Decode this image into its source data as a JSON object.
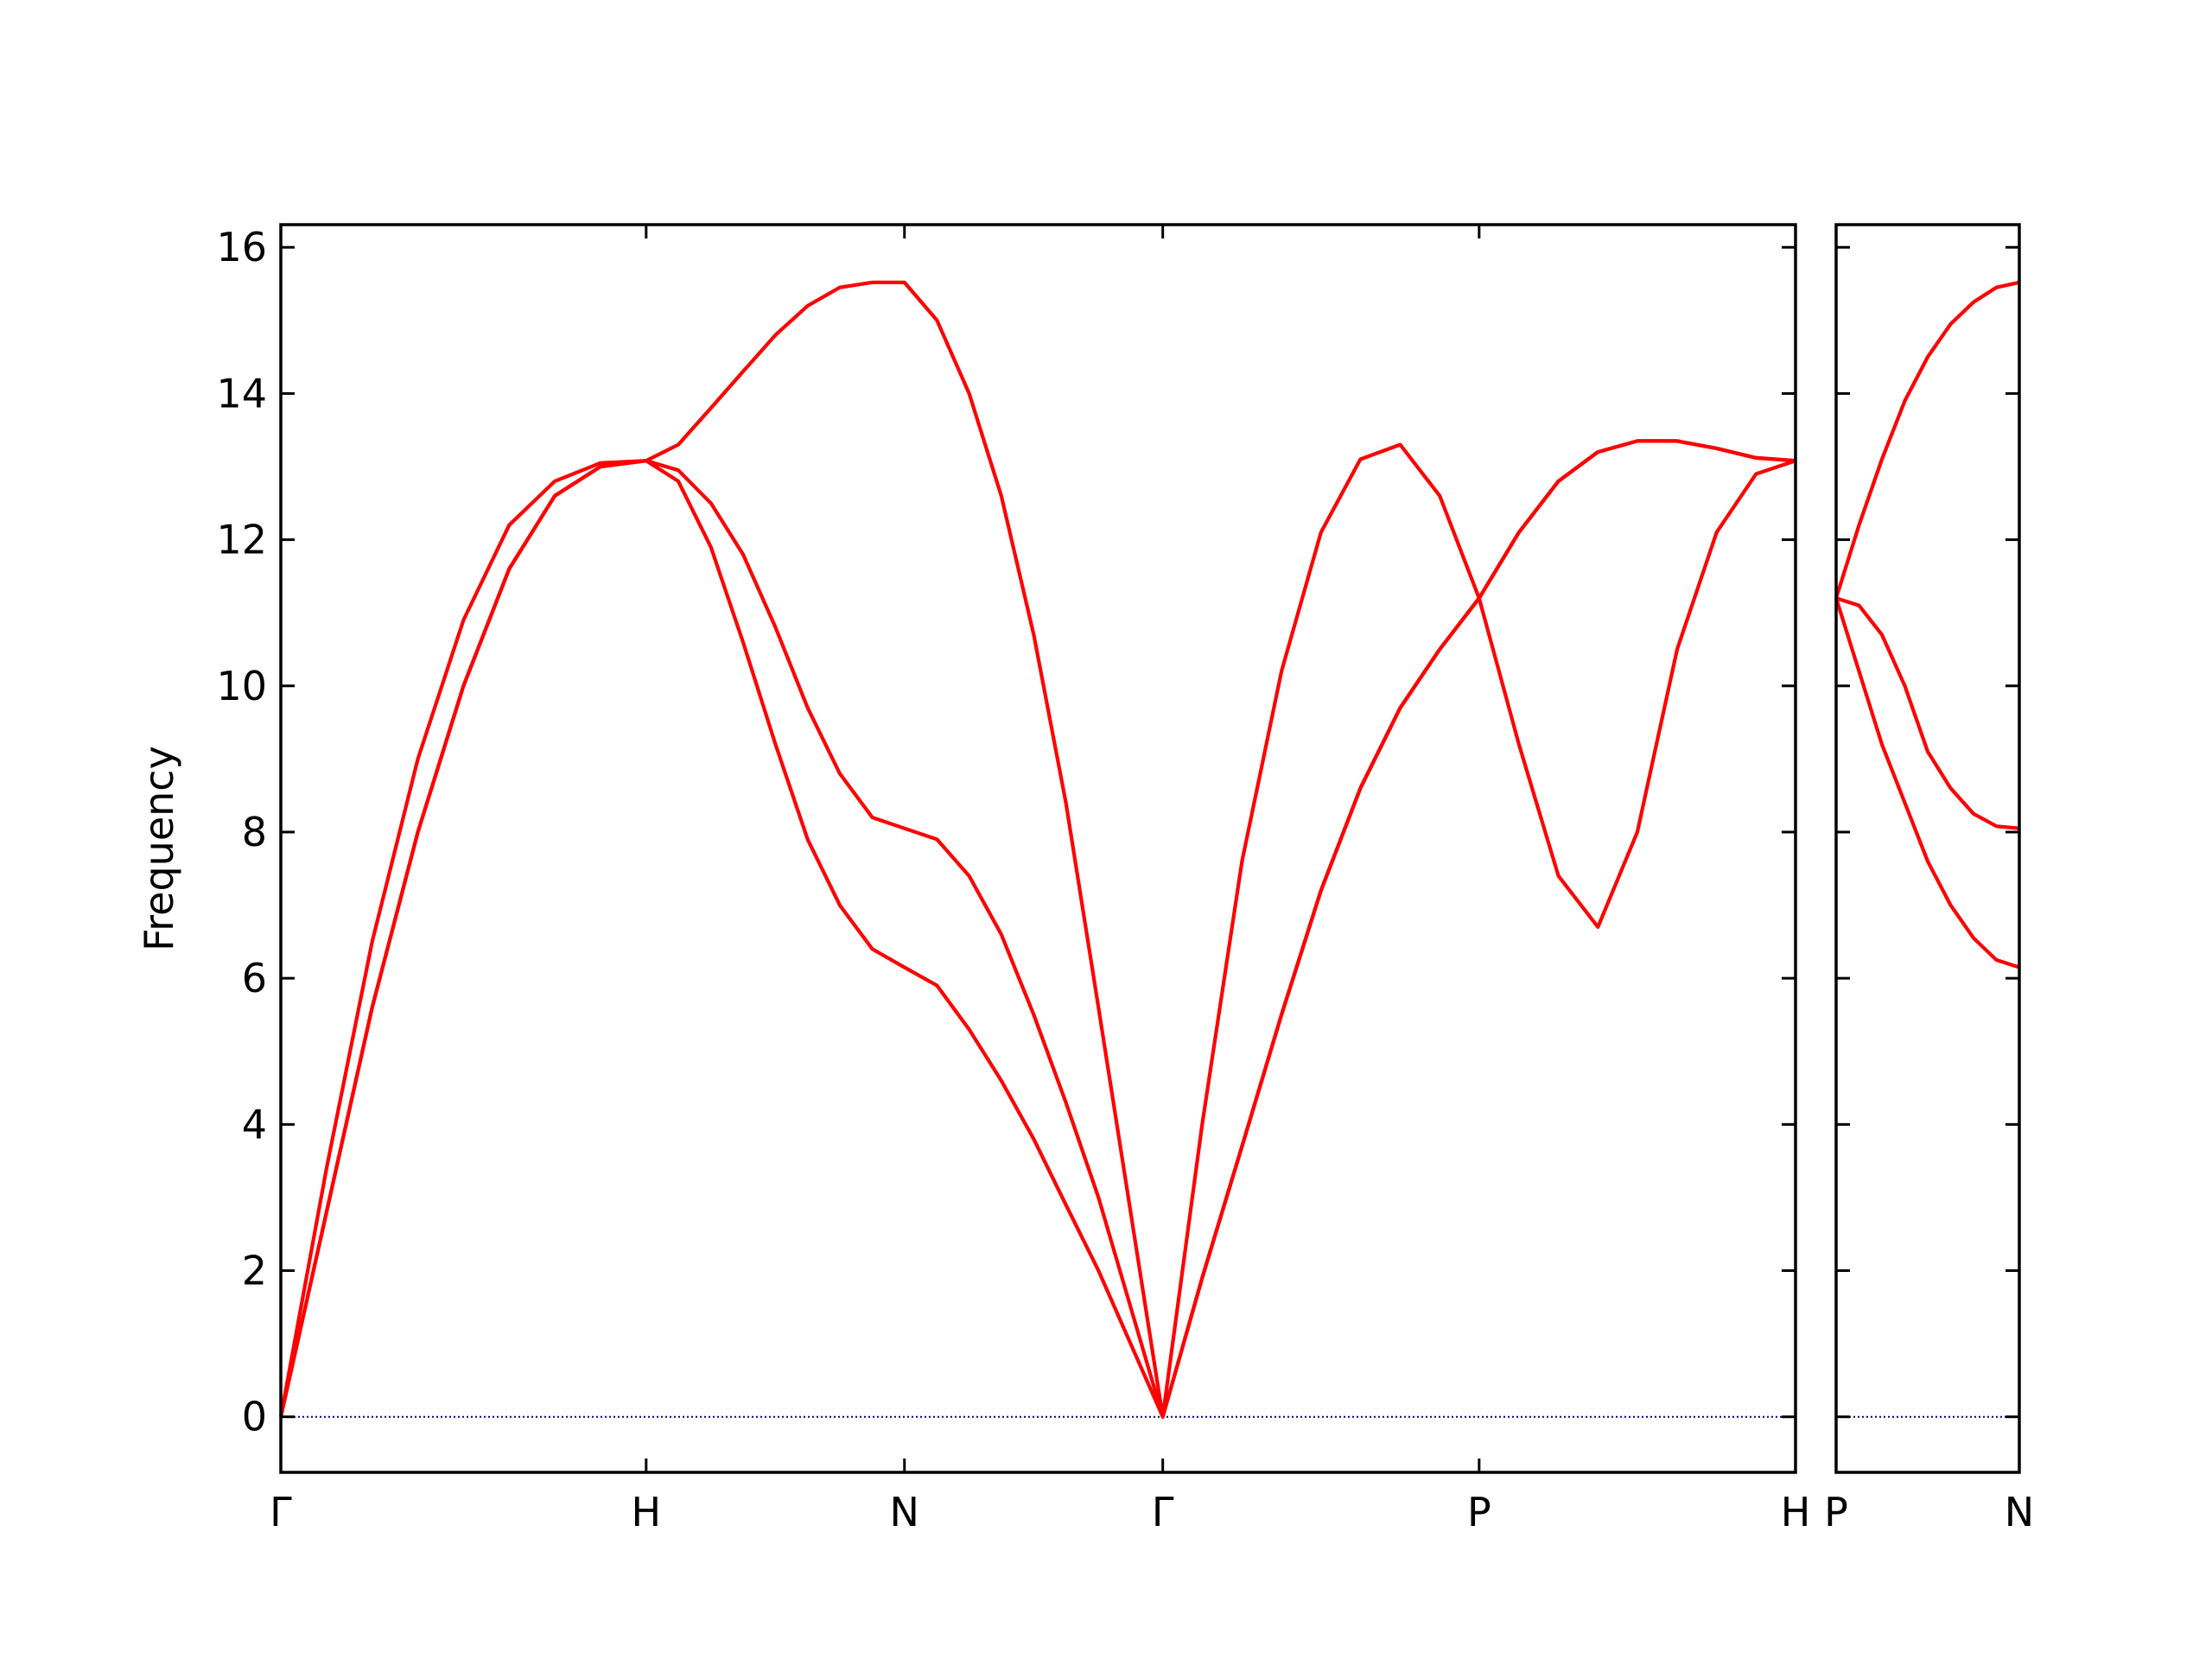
{
  "chart_data": [
    {
      "type": "line",
      "ylabel": "Frequency",
      "x": [
        0,
        0.125,
        0.25,
        0.375,
        0.5,
        0.625,
        0.75,
        0.875,
        1,
        1.088,
        1.177,
        1.265,
        1.354,
        1.442,
        1.53,
        1.619,
        1.707,
        1.796,
        1.884,
        1.972,
        2.061,
        2.149,
        2.238,
        2.326,
        2.414,
        2.522,
        2.631,
        2.739,
        2.847,
        2.955,
        3.064,
        3.172,
        3.28,
        3.389,
        3.497,
        3.605,
        3.713,
        3.822,
        3.93,
        4.038,
        4.146
      ],
      "series": [
        {
          "color": "#ff0000",
          "values": [
            0,
            2.8,
            5.6,
            8.0,
            10.0,
            11.6,
            12.6,
            13.0,
            13.08,
            12.8,
            11.9,
            10.6,
            9.2,
            7.9,
            7.0,
            6.4,
            6.15,
            5.9,
            5.3,
            4.6,
            3.8,
            2.9,
            2.0,
            1.0,
            0,
            1.9,
            3.7,
            5.5,
            7.2,
            8.6,
            9.7,
            10.5,
            11.2,
            9.2,
            7.4,
            6.7,
            8.0,
            10.5,
            12.1,
            12.9,
            13.08
          ]
        },
        {
          "color": "#ff0000",
          "values": [
            0,
            2.8,
            5.6,
            8.0,
            10.0,
            11.6,
            12.6,
            13.0,
            13.08,
            12.95,
            12.5,
            11.8,
            10.8,
            9.7,
            8.8,
            8.2,
            8.05,
            7.9,
            7.4,
            6.6,
            5.5,
            4.3,
            3.0,
            1.5,
            0,
            1.9,
            3.7,
            5.5,
            7.2,
            8.6,
            9.7,
            10.5,
            11.2,
            12.1,
            12.8,
            13.2,
            13.35,
            13.35,
            13.25,
            13.12,
            13.08
          ]
        },
        {
          "color": "#ff0000",
          "values": [
            0,
            3.4,
            6.5,
            9.0,
            10.9,
            12.2,
            12.8,
            13.05,
            13.08,
            13.3,
            13.8,
            14.3,
            14.8,
            15.2,
            15.45,
            15.52,
            15.52,
            15.0,
            14.0,
            12.6,
            10.7,
            8.4,
            5.6,
            2.8,
            0,
            4.0,
            7.6,
            10.2,
            12.1,
            13.1,
            13.3,
            12.6,
            11.2,
            12.1,
            12.8,
            13.2,
            13.35,
            13.35,
            13.25,
            13.12,
            13.08
          ]
        }
      ],
      "xlim": [
        0,
        4.146
      ],
      "xticks": [
        {
          "value": 0,
          "label": "Γ"
        },
        {
          "value": 1,
          "label": "H"
        },
        {
          "value": 1.707,
          "label": "N"
        },
        {
          "value": 2.414,
          "label": "Γ"
        },
        {
          "value": 3.28,
          "label": "P"
        },
        {
          "value": 4.146,
          "label": "H"
        }
      ],
      "ylim": [
        -0.76,
        16.31
      ],
      "yticks": [
        0,
        2,
        4,
        6,
        8,
        10,
        12,
        14,
        16
      ],
      "hline": 0,
      "hline_color": "#00008b"
    },
    {
      "type": "line",
      "x": [
        0,
        0.0625,
        0.125,
        0.1875,
        0.25,
        0.3125,
        0.375,
        0.4375,
        0.5
      ],
      "series": [
        {
          "color": "#ff0000",
          "values": [
            11.2,
            10.2,
            9.2,
            8.4,
            7.6,
            7.0,
            6.55,
            6.25,
            6.15
          ]
        },
        {
          "color": "#ff0000",
          "values": [
            11.2,
            11.1,
            10.7,
            10.0,
            9.1,
            8.6,
            8.25,
            8.08,
            8.05
          ]
        },
        {
          "color": "#ff0000",
          "values": [
            11.2,
            12.2,
            13.1,
            13.9,
            14.5,
            14.95,
            15.25,
            15.45,
            15.52
          ]
        }
      ],
      "xlim": [
        0,
        0.5
      ],
      "xticks": [
        {
          "value": 0,
          "label": "P"
        },
        {
          "value": 0.5,
          "label": "N"
        }
      ],
      "ylim": [
        -0.76,
        16.31
      ],
      "yticks": [
        0,
        2,
        4,
        6,
        8,
        10,
        12,
        14,
        16
      ],
      "hline": 0,
      "hline_color": "#00008b"
    }
  ]
}
